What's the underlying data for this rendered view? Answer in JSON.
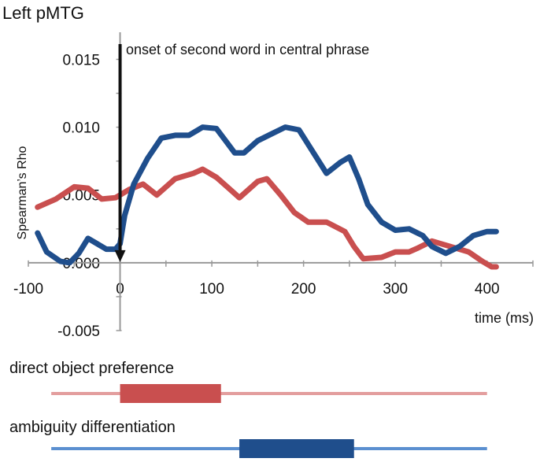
{
  "chart_data": {
    "type": "line",
    "title": "Left  pMTG",
    "xlabel": "time (ms)",
    "ylabel": "Spearman’s Rho",
    "xlim": [
      -100,
      450
    ],
    "ylim": [
      -0.005,
      0.017
    ],
    "x_ticks": [
      -100,
      0,
      100,
      200,
      300,
      400
    ],
    "x_tick_labels": [
      "-100",
      "0",
      "100",
      "200",
      "300",
      "400"
    ],
    "y_ticks": [
      -0.005,
      0.0,
      0.005,
      0.01,
      0.015
    ],
    "y_tick_labels": [
      "-0.005",
      "0.000",
      "0.005",
      "0.010",
      "0.015"
    ],
    "grid": false,
    "legend": "none",
    "annotation": {
      "text": "onset of second word in central phrase",
      "x": 0,
      "arrow": "down"
    },
    "series": [
      {
        "color": "#c94f4f",
        "x": [
          -90,
          -70,
          -50,
          -35,
          -20,
          -5,
          10,
          25,
          40,
          60,
          80,
          90,
          105,
          120,
          130,
          150,
          160,
          175,
          190,
          205,
          225,
          245,
          255,
          265,
          285,
          300,
          315,
          325,
          340,
          360,
          380,
          395,
          405,
          410
        ],
        "y": [
          0.0041,
          0.0047,
          0.0056,
          0.0055,
          0.0047,
          0.0048,
          0.0054,
          0.0058,
          0.005,
          0.0062,
          0.0066,
          0.0069,
          0.0063,
          0.0054,
          0.0048,
          0.006,
          0.0062,
          0.005,
          0.0037,
          0.003,
          0.003,
          0.0023,
          0.0012,
          0.0003,
          0.0004,
          0.0008,
          0.0008,
          0.0011,
          0.0016,
          0.0012,
          0.0008,
          0.0001,
          -0.0003,
          -0.0003
        ]
      },
      {
        "color": "#1f4e8c",
        "x": [
          -90,
          -80,
          -65,
          -55,
          -45,
          -35,
          -25,
          -15,
          -5,
          0,
          5,
          15,
          30,
          45,
          60,
          75,
          90,
          105,
          115,
          125,
          135,
          150,
          165,
          180,
          195,
          210,
          225,
          240,
          250,
          260,
          270,
          285,
          300,
          315,
          330,
          340,
          355,
          370,
          385,
          400,
          410
        ],
        "y": [
          0.0022,
          0.0008,
          0.0001,
          0.0,
          0.0007,
          0.0018,
          0.0014,
          0.001,
          0.001,
          0.0014,
          0.0035,
          0.0058,
          0.0077,
          0.0092,
          0.0094,
          0.0094,
          0.01,
          0.0099,
          0.009,
          0.0081,
          0.0081,
          0.009,
          0.0095,
          0.01,
          0.0098,
          0.0082,
          0.0066,
          0.0074,
          0.0078,
          0.0062,
          0.0043,
          0.003,
          0.0024,
          0.0025,
          0.002,
          0.0012,
          0.0007,
          0.0012,
          0.002,
          0.0023,
          0.0023
        ]
      }
    ],
    "bars": [
      {
        "label": "direct object preference",
        "span": [
          0,
          110
        ],
        "range": [
          -75,
          400
        ],
        "color": "#c94f4f",
        "track_color": "#e39e9e"
      },
      {
        "label": "ambiguity differentiation",
        "span": [
          130,
          255
        ],
        "range": [
          -75,
          400
        ],
        "color": "#1f4e8c",
        "track_color": "#5b8fd0"
      }
    ]
  }
}
